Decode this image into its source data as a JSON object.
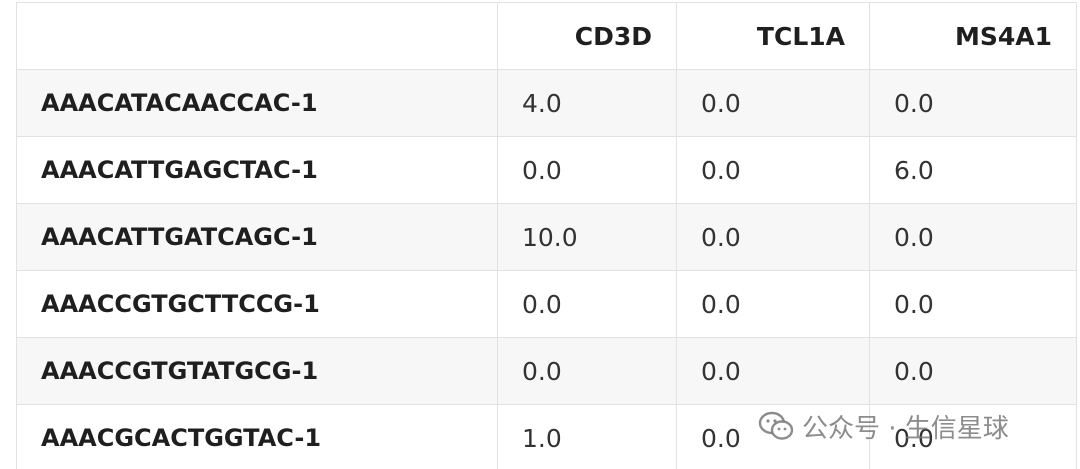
{
  "table": {
    "columns": [
      "",
      "CD3D",
      "TCL1A",
      "MS4A1"
    ],
    "rows": [
      {
        "label": "AAACATACAACCAC-1",
        "values": [
          "4.0",
          "0.0",
          "0.0"
        ]
      },
      {
        "label": "AAACATTGAGCTAC-1",
        "values": [
          "0.0",
          "0.0",
          "6.0"
        ]
      },
      {
        "label": "AAACATTGATCAGC-1",
        "values": [
          "10.0",
          "0.0",
          "0.0"
        ]
      },
      {
        "label": "AAACCGTGCTTCCG-1",
        "values": [
          "0.0",
          "0.0",
          "0.0"
        ]
      },
      {
        "label": "AAACCGTGTATGCG-1",
        "values": [
          "0.0",
          "0.0",
          "0.0"
        ]
      },
      {
        "label": "AAACGCACTGGTAC-1",
        "values": [
          "1.0",
          "0.0",
          "0.0"
        ]
      }
    ]
  },
  "watermark": {
    "text": "公众号 · 生信星球",
    "icon": "wechat-icon"
  },
  "colors": {
    "border": "#e2e2e2",
    "stripe": "#f7f7f7",
    "text": "#1f1f1f"
  }
}
